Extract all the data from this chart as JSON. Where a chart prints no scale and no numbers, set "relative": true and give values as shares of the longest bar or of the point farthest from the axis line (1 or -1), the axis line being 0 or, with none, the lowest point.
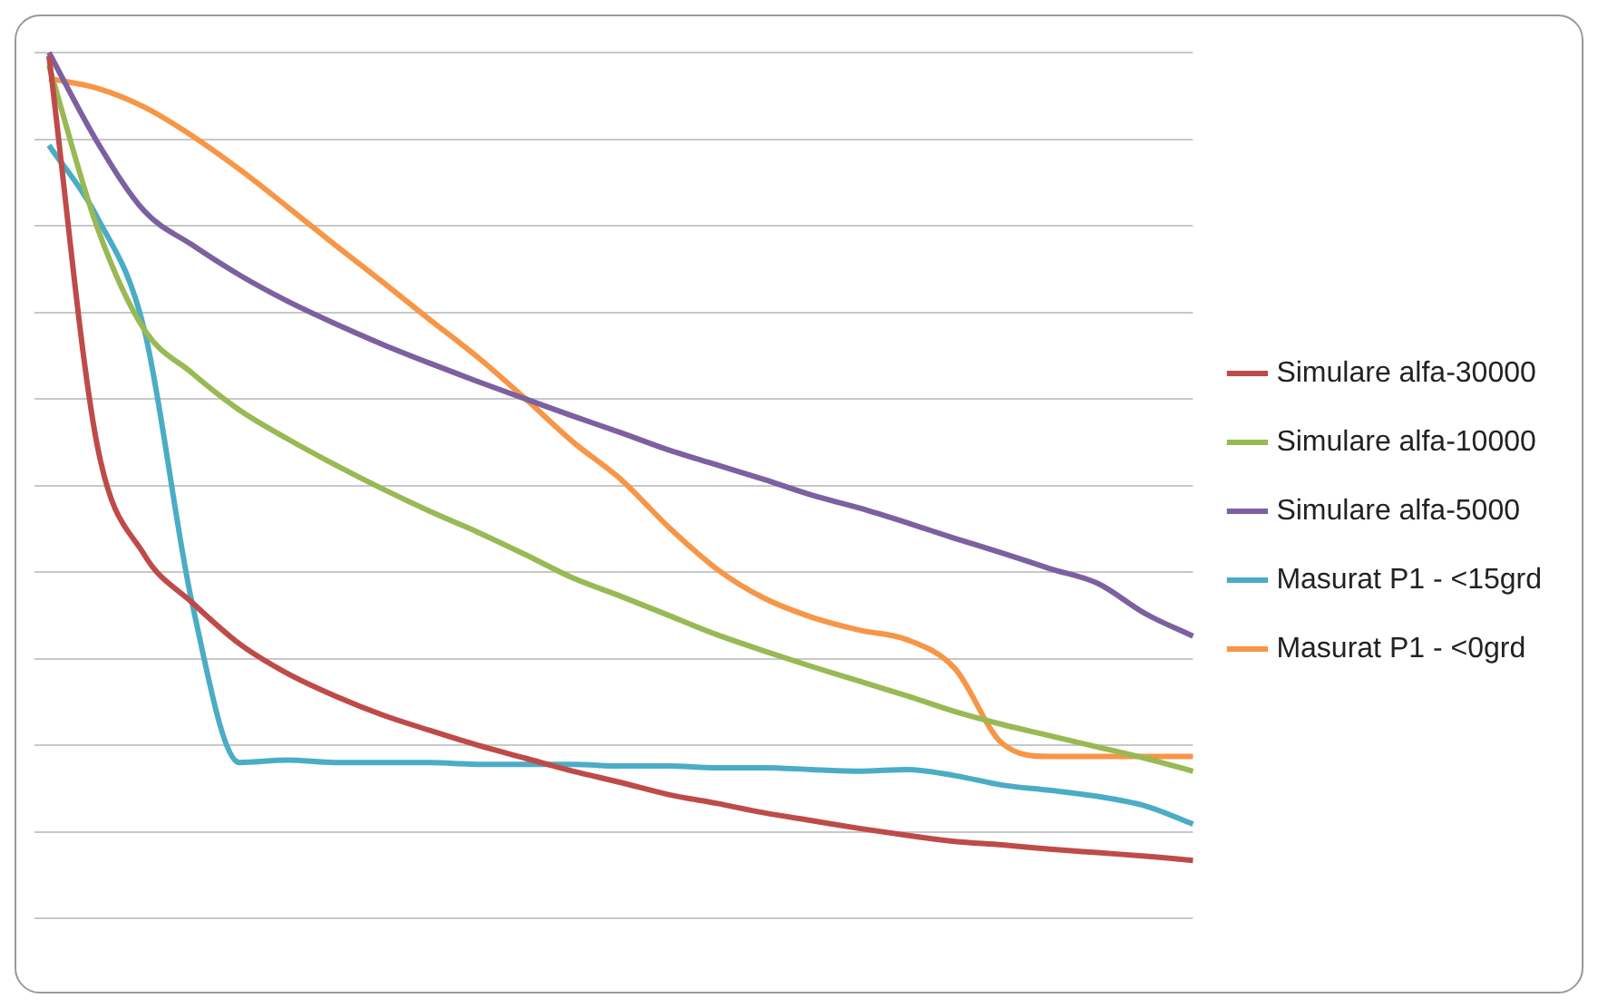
{
  "chart_data": {
    "type": "line",
    "relative": true,
    "grid": "y",
    "legend": "right",
    "marker": "none",
    "line_style": "solid",
    "categories": [
      null,
      null,
      null,
      null,
      null,
      null,
      null,
      null,
      null,
      null,
      null,
      null,
      null,
      null,
      null,
      null,
      null,
      null,
      null,
      null,
      null,
      null,
      null,
      null,
      null
    ],
    "series": [
      {
        "name": "Simulare alfa-30000",
        "color": "#be4b48",
        "values": [
          0.996,
          0.55,
          0.42,
          0.365,
          0.317,
          0.283,
          0.257,
          0.235,
          0.217,
          0.2,
          0.185,
          0.17,
          0.157,
          0.143,
          0.133,
          0.122,
          0.113,
          0.104,
          0.096,
          0.089,
          0.085,
          0.08,
          0.076,
          0.072,
          0.067
        ]
      },
      {
        "name": "Simulare alfa-10000",
        "color": "#98b954",
        "values": [
          0.985,
          0.8,
          0.68,
          0.63,
          0.587,
          0.554,
          0.524,
          0.496,
          0.47,
          0.446,
          0.42,
          0.393,
          0.372,
          0.35,
          0.328,
          0.309,
          0.291,
          0.274,
          0.257,
          0.239,
          0.224,
          0.211,
          0.198,
          0.185,
          0.17
        ]
      },
      {
        "name": "Simulare alfa-5000",
        "color": "#7d60a0",
        "values": [
          1,
          0.898,
          0.817,
          0.778,
          0.743,
          0.713,
          0.687,
          0.663,
          0.641,
          0.62,
          0.6,
          0.58,
          0.561,
          0.541,
          0.524,
          0.507,
          0.489,
          0.474,
          0.457,
          0.439,
          0.422,
          0.404,
          0.387,
          0.352,
          0.326
        ]
      },
      {
        "name": "Masurat P1 - <15grd",
        "color": "#4bacc6",
        "values": [
          0.893,
          0.811,
          0.68,
          0.365,
          0.18,
          0.183,
          0.18,
          0.18,
          0.18,
          0.178,
          0.178,
          0.178,
          0.176,
          0.176,
          0.174,
          0.174,
          0.172,
          0.17,
          0.172,
          0.165,
          0.154,
          0.148,
          0.141,
          0.13,
          0.109
        ]
      },
      {
        "name": "Masurat P1 - <0grd",
        "color": "#f79646",
        "values": [
          0.97,
          0.959,
          0.937,
          0.904,
          0.865,
          0.822,
          0.778,
          0.735,
          0.691,
          0.648,
          0.6,
          0.55,
          0.507,
          0.452,
          0.404,
          0.37,
          0.348,
          0.333,
          0.322,
          0.289,
          0.202,
          0.187,
          0.187,
          0.187,
          0.187
        ]
      }
    ]
  }
}
